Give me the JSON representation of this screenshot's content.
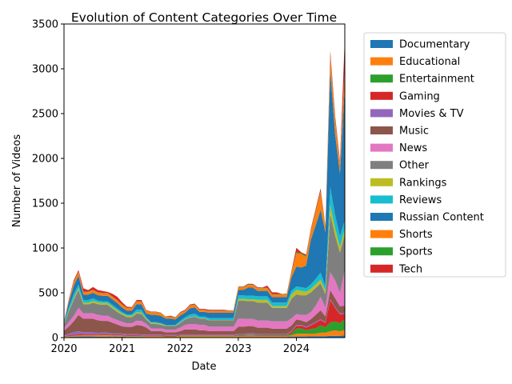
{
  "chart_data": {
    "type": "area",
    "stacked": true,
    "title": "Evolution of Content Categories Over Time",
    "xlabel": "Date",
    "ylabel": "Number of Videos",
    "xlim": [
      "2020-01",
      "2024-11"
    ],
    "ylim": [
      0,
      3500
    ],
    "x_ticks": [
      "2020",
      "2021",
      "2022",
      "2023",
      "2024"
    ],
    "y_ticks": [
      "0",
      "500",
      "1000",
      "1500",
      "2000",
      "2500",
      "3000",
      "3500"
    ],
    "grid": false,
    "legend_position": "outside-right",
    "x": [
      "2020-01",
      "2020-02",
      "2020-03",
      "2020-04",
      "2020-05",
      "2020-06",
      "2020-07",
      "2020-08",
      "2020-09",
      "2020-10",
      "2020-11",
      "2020-12",
      "2021-01",
      "2021-02",
      "2021-03",
      "2021-04",
      "2021-05",
      "2021-06",
      "2021-07",
      "2021-08",
      "2021-09",
      "2021-10",
      "2021-11",
      "2021-12",
      "2022-01",
      "2022-02",
      "2022-03",
      "2022-04",
      "2022-05",
      "2022-06",
      "2022-07",
      "2022-08",
      "2022-09",
      "2022-10",
      "2022-11",
      "2022-12",
      "2023-01",
      "2023-02",
      "2023-03",
      "2023-04",
      "2023-05",
      "2023-06",
      "2023-07",
      "2023-08",
      "2023-09",
      "2023-10",
      "2023-11",
      "2023-12",
      "2024-01",
      "2024-02",
      "2024-03",
      "2024-04",
      "2024-05",
      "2024-06",
      "2024-07",
      "2024-08",
      "2024-09",
      "2024-10",
      "2024-11"
    ],
    "series": [
      {
        "name": "Documentary",
        "color": "#1f77b4",
        "values": [
          5,
          8,
          10,
          12,
          12,
          12,
          12,
          10,
          10,
          10,
          8,
          10,
          10,
          8,
          8,
          8,
          8,
          6,
          6,
          6,
          6,
          5,
          5,
          5,
          6,
          6,
          6,
          6,
          6,
          6,
          6,
          6,
          6,
          6,
          6,
          6,
          8,
          8,
          8,
          8,
          8,
          8,
          8,
          8,
          8,
          8,
          8,
          10,
          12,
          12,
          12,
          15,
          15,
          15,
          15,
          20,
          20,
          20,
          25
        ]
      },
      {
        "name": "Educational",
        "color": "#ff7f0e",
        "values": [
          5,
          6,
          8,
          10,
          10,
          10,
          10,
          12,
          15,
          15,
          12,
          10,
          10,
          8,
          8,
          8,
          6,
          6,
          6,
          6,
          6,
          5,
          5,
          5,
          8,
          8,
          8,
          8,
          8,
          8,
          8,
          8,
          8,
          8,
          8,
          8,
          10,
          10,
          12,
          12,
          10,
          10,
          10,
          10,
          10,
          10,
          10,
          15,
          30,
          30,
          30,
          30,
          30,
          40,
          40,
          50,
          60,
          50,
          60
        ]
      },
      {
        "name": "Entertainment",
        "color": "#2ca02c",
        "values": [
          2,
          2,
          3,
          3,
          3,
          3,
          3,
          3,
          3,
          3,
          3,
          3,
          3,
          3,
          3,
          3,
          3,
          3,
          3,
          3,
          3,
          3,
          3,
          3,
          5,
          5,
          5,
          5,
          5,
          5,
          5,
          5,
          5,
          5,
          5,
          5,
          8,
          8,
          8,
          8,
          8,
          8,
          8,
          8,
          8,
          8,
          8,
          20,
          60,
          60,
          40,
          50,
          60,
          80,
          60,
          100,
          100,
          90,
          120
        ]
      },
      {
        "name": "Gaming",
        "color": "#d62728",
        "values": [
          5,
          8,
          10,
          12,
          10,
          10,
          10,
          8,
          8,
          8,
          8,
          8,
          8,
          8,
          8,
          8,
          8,
          8,
          8,
          8,
          8,
          8,
          8,
          8,
          5,
          5,
          5,
          5,
          5,
          5,
          5,
          5,
          5,
          5,
          5,
          5,
          5,
          5,
          5,
          5,
          5,
          5,
          5,
          5,
          5,
          5,
          5,
          20,
          30,
          30,
          30,
          40,
          60,
          60,
          50,
          250,
          150,
          100,
          60
        ]
      },
      {
        "name": "Movies & TV",
        "color": "#9467bd",
        "values": [
          10,
          20,
          30,
          35,
          25,
          25,
          25,
          20,
          20,
          20,
          15,
          15,
          15,
          12,
          12,
          12,
          10,
          10,
          10,
          10,
          10,
          8,
          8,
          8,
          8,
          8,
          8,
          8,
          8,
          8,
          8,
          8,
          8,
          8,
          8,
          8,
          10,
          10,
          15,
          15,
          10,
          10,
          10,
          10,
          10,
          10,
          10,
          10,
          10,
          10,
          10,
          10,
          10,
          10,
          10,
          10,
          10,
          10,
          10
        ]
      },
      {
        "name": "Music",
        "color": "#8c564b",
        "values": [
          50,
          80,
          120,
          180,
          150,
          150,
          150,
          140,
          130,
          130,
          120,
          100,
          80,
          80,
          80,
          100,
          100,
          80,
          40,
          40,
          40,
          30,
          30,
          30,
          40,
          60,
          60,
          60,
          50,
          50,
          40,
          40,
          40,
          40,
          40,
          40,
          80,
          80,
          80,
          80,
          70,
          70,
          70,
          60,
          60,
          60,
          60,
          60,
          60,
          50,
          50,
          60,
          80,
          100,
          60,
          100,
          100,
          80,
          80
        ]
      },
      {
        "name": "News",
        "color": "#e377c2",
        "values": [
          30,
          50,
          60,
          80,
          60,
          60,
          60,
          60,
          60,
          60,
          50,
          50,
          50,
          40,
          40,
          50,
          50,
          40,
          30,
          30,
          30,
          30,
          30,
          30,
          40,
          50,
          60,
          60,
          60,
          60,
          50,
          50,
          50,
          50,
          50,
          50,
          90,
          90,
          80,
          80,
          80,
          80,
          80,
          80,
          80,
          80,
          80,
          80,
          60,
          60,
          80,
          80,
          100,
          150,
          100,
          200,
          200,
          150,
          400
        ]
      },
      {
        "name": "Other",
        "color": "#7f7f7f",
        "values": [
          40,
          120,
          180,
          200,
          100,
          100,
          120,
          120,
          120,
          120,
          110,
          90,
          80,
          70,
          70,
          80,
          80,
          50,
          50,
          50,
          40,
          40,
          40,
          40,
          50,
          60,
          70,
          80,
          70,
          70,
          70,
          70,
          70,
          70,
          70,
          70,
          200,
          200,
          200,
          200,
          200,
          200,
          200,
          150,
          150,
          150,
          150,
          220,
          220,
          220,
          220,
          220,
          200,
          150,
          150,
          650,
          500,
          450,
          400
        ]
      },
      {
        "name": "Rankings",
        "color": "#bcbd22",
        "values": [
          5,
          10,
          15,
          20,
          20,
          20,
          20,
          20,
          20,
          20,
          20,
          20,
          15,
          15,
          15,
          15,
          15,
          10,
          10,
          10,
          10,
          5,
          5,
          5,
          5,
          5,
          5,
          5,
          5,
          5,
          5,
          5,
          5,
          5,
          5,
          5,
          20,
          20,
          20,
          20,
          30,
          30,
          30,
          20,
          20,
          20,
          20,
          50,
          50,
          50,
          40,
          40,
          40,
          40,
          40,
          100,
          80,
          60,
          60
        ]
      },
      {
        "name": "Reviews",
        "color": "#17becf",
        "values": [
          10,
          30,
          50,
          40,
          30,
          30,
          30,
          20,
          20,
          20,
          20,
          20,
          15,
          15,
          15,
          30,
          30,
          15,
          10,
          10,
          10,
          8,
          8,
          8,
          20,
          20,
          30,
          30,
          20,
          20,
          20,
          20,
          20,
          20,
          20,
          20,
          40,
          40,
          40,
          40,
          40,
          40,
          40,
          40,
          40,
          40,
          40,
          40,
          40,
          40,
          40,
          50,
          60,
          80,
          50,
          200,
          150,
          120,
          100
        ]
      },
      {
        "name": "Russian Content",
        "color": "#1f77b4",
        "values": [
          10,
          60,
          90,
          100,
          60,
          60,
          60,
          60,
          60,
          60,
          60,
          60,
          50,
          40,
          40,
          60,
          60,
          40,
          80,
          80,
          80,
          70,
          70,
          60,
          60,
          50,
          70,
          70,
          50,
          50,
          60,
          60,
          60,
          60,
          60,
          60,
          60,
          60,
          90,
          90,
          60,
          60,
          60,
          60,
          60,
          60,
          60,
          150,
          220,
          220,
          250,
          500,
          600,
          700,
          600,
          1300,
          900,
          700,
          1500
        ]
      },
      {
        "name": "Shorts",
        "color": "#ff7f0e",
        "values": [
          5,
          20,
          40,
          40,
          30,
          30,
          30,
          30,
          30,
          30,
          30,
          30,
          30,
          30,
          30,
          30,
          30,
          30,
          30,
          30,
          30,
          20,
          20,
          20,
          30,
          20,
          30,
          30,
          20,
          20,
          20,
          20,
          20,
          20,
          20,
          20,
          30,
          30,
          30,
          30,
          30,
          30,
          30,
          30,
          30,
          30,
          30,
          50,
          150,
          150,
          100,
          100,
          150,
          200,
          50,
          150,
          150,
          100,
          200
        ]
      },
      {
        "name": "Sports",
        "color": "#2ca02c",
        "values": [
          2,
          3,
          5,
          5,
          3,
          3,
          3,
          3,
          3,
          3,
          3,
          3,
          3,
          3,
          3,
          3,
          3,
          3,
          3,
          3,
          3,
          3,
          3,
          3,
          3,
          3,
          3,
          3,
          3,
          3,
          3,
          3,
          3,
          3,
          3,
          3,
          5,
          5,
          5,
          5,
          5,
          5,
          5,
          5,
          5,
          5,
          5,
          10,
          10,
          10,
          10,
          10,
          10,
          10,
          10,
          20,
          15,
          15,
          30
        ]
      },
      {
        "name": "Tech",
        "color": "#d62728",
        "values": [
          1,
          13,
          19,
          18,
          37,
          17,
          32,
          24,
          21,
          11,
          30,
          36,
          26,
          13,
          8,
          13,
          17,
          6,
          4,
          4,
          3,
          2,
          9,
          4,
          6,
          10,
          9,
          9,
          10,
          10,
          10,
          10,
          10,
          10,
          5,
          4,
          4,
          4,
          7,
          7,
          6,
          4,
          24,
          20,
          19,
          2,
          4,
          15,
          50,
          10,
          15,
          15,
          25,
          30,
          15,
          50,
          40,
          30,
          300
        ]
      }
    ]
  }
}
